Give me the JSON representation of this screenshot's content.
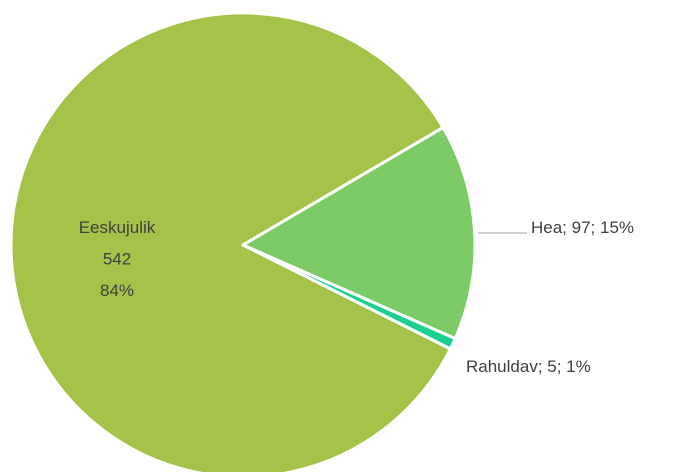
{
  "chart_data": {
    "type": "pie",
    "values": [
      542,
      97,
      5
    ],
    "value_labels": [
      "Eeskujulik\n542\n84%",
      "Hea; 97; 15%",
      "Rahuldav; 5; 1%"
    ],
    "colors": [
      "#a5c249",
      "#7dcb66",
      "#1ccf8f"
    ]
  }
}
